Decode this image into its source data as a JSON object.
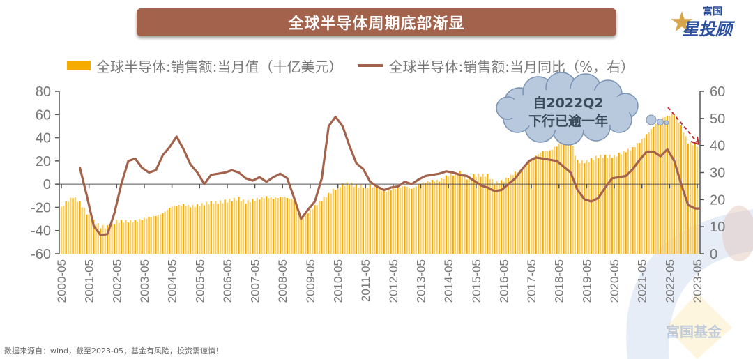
{
  "header": {
    "title": "全球半导体周期底部渐显",
    "logo_top": "富国",
    "logo_bottom": "星投顾",
    "logo_icon": "star-icon"
  },
  "legend": {
    "bar_label": "全球半导体:销售额:当月值（十亿美元）",
    "line_label": "全球半导体:销售额:当月同比（%，右）"
  },
  "annotation": {
    "line1": "自2022Q2",
    "line2": "下行已逾一年",
    "arrow": "dashed-red-down-arrow"
  },
  "footnote": "数据来源自：wind，截至2023-05；基金有风险，投资需谨慎！",
  "watermark": "富国基金",
  "colors": {
    "bar": "#f5ab00",
    "line": "#a3624b",
    "title_bg": "#a3624b",
    "cloud": "#b8c9dd",
    "arrow": "#c0282d"
  },
  "chart_data": {
    "type": "bar+line",
    "title": "全球半导体周期底部渐显",
    "left_axis": {
      "ticks": [
        80,
        60,
        40,
        20,
        0,
        -20,
        -40,
        -60
      ],
      "range": [
        -60,
        80
      ]
    },
    "right_axis": {
      "ticks": [
        60,
        50,
        40,
        30,
        20,
        10,
        0
      ],
      "range": [
        0,
        60
      ]
    },
    "x_ticks": [
      "2000-05",
      "2001-05",
      "2002-05",
      "2003-05",
      "2004-05",
      "2005-05",
      "2006-05",
      "2007-05",
      "2008-05",
      "2009-05",
      "2010-05",
      "2011-05",
      "2012-05",
      "2013-05",
      "2014-05",
      "2015-05",
      "2016-05",
      "2017-05",
      "2018-05",
      "2019-05",
      "2020-05",
      "2021-05",
      "2022-05",
      "2023-05"
    ],
    "series": [
      {
        "name": "全球半导体:销售额:当月值（十亿美元）",
        "kind": "bar",
        "axis": "right",
        "points": [
          [
            2000.33,
            17
          ],
          [
            2000.5,
            19
          ],
          [
            2000.75,
            21
          ],
          [
            2001.0,
            19
          ],
          [
            2001.25,
            15
          ],
          [
            2001.5,
            12
          ],
          [
            2001.75,
            10
          ],
          [
            2002.0,
            10
          ],
          [
            2002.33,
            12
          ],
          [
            2002.75,
            12
          ],
          [
            2003.0,
            12
          ],
          [
            2003.33,
            13
          ],
          [
            2003.75,
            14
          ],
          [
            2004.0,
            15
          ],
          [
            2004.33,
            17.5
          ],
          [
            2004.75,
            18
          ],
          [
            2005.0,
            17.5
          ],
          [
            2005.33,
            18
          ],
          [
            2005.75,
            19
          ],
          [
            2006.0,
            19
          ],
          [
            2006.33,
            19.5
          ],
          [
            2006.75,
            20.5
          ],
          [
            2007.0,
            19
          ],
          [
            2007.33,
            20
          ],
          [
            2007.75,
            21
          ],
          [
            2008.0,
            20.5
          ],
          [
            2008.33,
            21
          ],
          [
            2008.75,
            20
          ],
          [
            2009.0,
            13
          ],
          [
            2009.33,
            16
          ],
          [
            2009.75,
            20
          ],
          [
            2010.0,
            22
          ],
          [
            2010.33,
            25
          ],
          [
            2010.75,
            26
          ],
          [
            2011.0,
            25
          ],
          [
            2011.33,
            25
          ],
          [
            2011.75,
            25
          ],
          [
            2012.0,
            23
          ],
          [
            2012.33,
            24
          ],
          [
            2012.75,
            25
          ],
          [
            2013.0,
            24
          ],
          [
            2013.33,
            26
          ],
          [
            2013.75,
            27
          ],
          [
            2014.0,
            27
          ],
          [
            2014.33,
            29
          ],
          [
            2014.75,
            30
          ],
          [
            2015.0,
            28
          ],
          [
            2015.33,
            29
          ],
          [
            2015.75,
            29
          ],
          [
            2016.0,
            26
          ],
          [
            2016.33,
            27
          ],
          [
            2016.75,
            30
          ],
          [
            2017.0,
            31
          ],
          [
            2017.33,
            35
          ],
          [
            2017.75,
            38
          ],
          [
            2018.0,
            38
          ],
          [
            2018.33,
            40.5
          ],
          [
            2018.75,
            42
          ],
          [
            2019.0,
            34
          ],
          [
            2019.33,
            34
          ],
          [
            2019.75,
            36
          ],
          [
            2020.0,
            36
          ],
          [
            2020.33,
            36
          ],
          [
            2020.75,
            38
          ],
          [
            2021.0,
            39
          ],
          [
            2021.33,
            42
          ],
          [
            2021.75,
            47
          ],
          [
            2022.0,
            50
          ],
          [
            2022.33,
            51
          ],
          [
            2022.5,
            52
          ],
          [
            2022.75,
            47
          ],
          [
            2023.0,
            41
          ],
          [
            2023.33,
            40
          ]
        ]
      },
      {
        "name": "全球半导体:销售额:当月同比（%，右）",
        "kind": "line",
        "axis": "left",
        "points": [
          [
            2001.0,
            14
          ],
          [
            2001.25,
            -10
          ],
          [
            2001.5,
            -36
          ],
          [
            2001.75,
            -44
          ],
          [
            2002.0,
            -43
          ],
          [
            2002.25,
            -25
          ],
          [
            2002.5,
            0
          ],
          [
            2002.75,
            20
          ],
          [
            2003.0,
            22
          ],
          [
            2003.25,
            14
          ],
          [
            2003.5,
            10
          ],
          [
            2003.75,
            12
          ],
          [
            2004.0,
            25
          ],
          [
            2004.25,
            32
          ],
          [
            2004.5,
            41
          ],
          [
            2004.75,
            30
          ],
          [
            2005.0,
            17
          ],
          [
            2005.25,
            10
          ],
          [
            2005.5,
            0
          ],
          [
            2005.75,
            8
          ],
          [
            2006.0,
            9
          ],
          [
            2006.25,
            10
          ],
          [
            2006.5,
            12
          ],
          [
            2006.75,
            10
          ],
          [
            2007.0,
            5
          ],
          [
            2007.25,
            3
          ],
          [
            2007.5,
            6
          ],
          [
            2007.75,
            2
          ],
          [
            2008.0,
            6
          ],
          [
            2008.25,
            9
          ],
          [
            2008.5,
            5
          ],
          [
            2008.75,
            -12
          ],
          [
            2009.0,
            -30
          ],
          [
            2009.25,
            -22
          ],
          [
            2009.5,
            -15
          ],
          [
            2009.75,
            5
          ],
          [
            2010.0,
            50
          ],
          [
            2010.25,
            58
          ],
          [
            2010.5,
            50
          ],
          [
            2010.75,
            33
          ],
          [
            2011.0,
            18
          ],
          [
            2011.25,
            13
          ],
          [
            2011.5,
            2
          ],
          [
            2011.75,
            -2
          ],
          [
            2012.0,
            -5
          ],
          [
            2012.25,
            -3
          ],
          [
            2012.5,
            -2
          ],
          [
            2012.75,
            2
          ],
          [
            2013.0,
            0
          ],
          [
            2013.25,
            4
          ],
          [
            2013.5,
            7
          ],
          [
            2013.75,
            8
          ],
          [
            2014.0,
            9
          ],
          [
            2014.25,
            11
          ],
          [
            2014.5,
            10
          ],
          [
            2014.75,
            8
          ],
          [
            2015.0,
            7
          ],
          [
            2015.25,
            3
          ],
          [
            2015.5,
            -1
          ],
          [
            2015.75,
            -3
          ],
          [
            2016.0,
            -6
          ],
          [
            2016.25,
            -5
          ],
          [
            2016.5,
            0
          ],
          [
            2016.75,
            5
          ],
          [
            2017.0,
            13
          ],
          [
            2017.25,
            20
          ],
          [
            2017.5,
            23
          ],
          [
            2017.75,
            22
          ],
          [
            2018.0,
            21
          ],
          [
            2018.25,
            20
          ],
          [
            2018.5,
            15
          ],
          [
            2018.75,
            10
          ],
          [
            2019.0,
            -5
          ],
          [
            2019.25,
            -13
          ],
          [
            2019.5,
            -15
          ],
          [
            2019.75,
            -12
          ],
          [
            2020.0,
            -3
          ],
          [
            2020.25,
            5
          ],
          [
            2020.5,
            6
          ],
          [
            2020.75,
            7
          ],
          [
            2021.0,
            13
          ],
          [
            2021.25,
            21
          ],
          [
            2021.5,
            28
          ],
          [
            2021.75,
            28
          ],
          [
            2022.0,
            24
          ],
          [
            2022.25,
            30
          ],
          [
            2022.5,
            20
          ],
          [
            2022.75,
            0
          ],
          [
            2023.0,
            -18
          ],
          [
            2023.25,
            -21
          ],
          [
            2023.4,
            -21
          ]
        ]
      }
    ],
    "legend_position": "top",
    "grid": false
  }
}
